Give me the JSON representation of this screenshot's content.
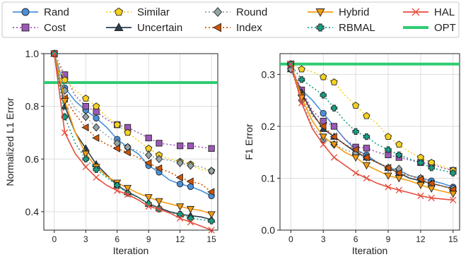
{
  "legend": [
    {
      "name": "Rand",
      "color": "#4a90d9",
      "marker": "circle",
      "dash": "solid"
    },
    {
      "name": "Cost",
      "color": "#9b59b6",
      "marker": "square",
      "dash": "dotted"
    },
    {
      "name": "Similar",
      "color": "#f5d020",
      "marker": "pentagon",
      "dash": "dotted"
    },
    {
      "name": "Uncertain",
      "color": "#2c3e50",
      "marker": "triangle-up",
      "dash": "solid"
    },
    {
      "name": "Round",
      "color": "#95a5a6",
      "marker": "diamond",
      "dash": "dotted"
    },
    {
      "name": "Index",
      "color": "#d35400",
      "marker": "triangle-left",
      "dash": "dotted"
    },
    {
      "name": "Hybrid",
      "color": "#f39c12",
      "marker": "triangle-down",
      "dash": "solid"
    },
    {
      "name": "RBMAL",
      "color": "#16a085",
      "marker": "plus",
      "dash": "dotted"
    },
    {
      "name": "HAL",
      "color": "#e74c3c",
      "marker": "x",
      "dash": "solid"
    },
    {
      "name": "OPT",
      "color": "#2ecc71",
      "marker": "none",
      "dash": "solid-thick"
    }
  ],
  "chart_data": [
    {
      "type": "line",
      "xlabel": "Iteration",
      "ylabel": "Normalized L1 Error",
      "xlim": [
        -1,
        15.6
      ],
      "ylim": [
        0.33,
        1.0
      ],
      "xticks": [
        "0",
        "3",
        "6",
        "9",
        "12",
        "15"
      ],
      "yticks": [
        "0.4",
        "0.6",
        "0.8",
        "1.0"
      ],
      "ytick_values": [
        0.4,
        0.6,
        0.8,
        1.0
      ],
      "xtick_values": [
        0,
        3,
        6,
        9,
        12,
        15
      ],
      "x": [
        0,
        1,
        2,
        3,
        4,
        5,
        6,
        7,
        8,
        9,
        10,
        11,
        12,
        13,
        14,
        15
      ],
      "marker_x": [
        0,
        1,
        3,
        4,
        6,
        7,
        9,
        10,
        12,
        13,
        15
      ],
      "opt": 0.89,
      "series": [
        {
          "name": "Rand",
          "values": [
            1.0,
            0.87,
            0.82,
            0.785,
            0.755,
            0.72,
            0.675,
            0.645,
            0.62,
            0.575,
            0.55,
            0.52,
            0.505,
            0.495,
            0.48,
            0.46
          ]
        },
        {
          "name": "Cost",
          "values": [
            1.0,
            0.92,
            0.84,
            0.8,
            0.78,
            0.75,
            0.73,
            0.72,
            0.7,
            0.68,
            0.66,
            0.655,
            0.65,
            0.65,
            0.645,
            0.64
          ]
        },
        {
          "name": "Similar",
          "values": [
            1.0,
            0.9,
            0.86,
            0.83,
            0.8,
            0.76,
            0.73,
            0.7,
            0.67,
            0.64,
            0.615,
            0.6,
            0.59,
            0.58,
            0.56,
            0.555
          ]
        },
        {
          "name": "Uncertain",
          "values": [
            1.0,
            0.8,
            0.7,
            0.64,
            0.58,
            0.54,
            0.5,
            0.475,
            0.455,
            0.43,
            0.415,
            0.4,
            0.39,
            0.385,
            0.38,
            0.37
          ]
        },
        {
          "name": "Round",
          "values": [
            1.0,
            0.86,
            0.79,
            0.76,
            0.72,
            0.69,
            0.66,
            0.645,
            0.63,
            0.615,
            0.6,
            0.595,
            0.585,
            0.575,
            0.57,
            0.555
          ]
        },
        {
          "name": "Index",
          "values": [
            1.0,
            0.83,
            0.77,
            0.72,
            0.68,
            0.655,
            0.64,
            0.625,
            0.605,
            0.585,
            0.565,
            0.55,
            0.53,
            0.515,
            0.505,
            0.475
          ]
        },
        {
          "name": "Hybrid",
          "values": [
            1.0,
            0.82,
            0.7,
            0.62,
            0.57,
            0.535,
            0.51,
            0.49,
            0.47,
            0.455,
            0.44,
            0.43,
            0.42,
            0.41,
            0.405,
            0.39
          ]
        },
        {
          "name": "RBMAL",
          "values": [
            1.0,
            0.76,
            0.66,
            0.6,
            0.56,
            0.53,
            0.5,
            0.47,
            0.455,
            0.43,
            0.41,
            0.395,
            0.39,
            0.375,
            0.37,
            0.365
          ]
        },
        {
          "name": "HAL",
          "values": [
            1.0,
            0.7,
            0.62,
            0.57,
            0.53,
            0.5,
            0.48,
            0.465,
            0.445,
            0.42,
            0.41,
            0.395,
            0.375,
            0.36,
            0.345,
            0.33
          ]
        }
      ]
    },
    {
      "type": "line",
      "xlabel": "Iteration",
      "ylabel": "F1 Error",
      "xlim": [
        -1,
        15.6
      ],
      "ylim": [
        0.0,
        0.34
      ],
      "xticks": [
        "0",
        "3",
        "6",
        "9",
        "12",
        "15"
      ],
      "yticks": [
        "0.0",
        "0.1",
        "0.2",
        "0.3"
      ],
      "ytick_values": [
        0.0,
        0.1,
        0.2,
        0.3
      ],
      "xtick_values": [
        0,
        3,
        6,
        9,
        12,
        15
      ],
      "x": [
        0,
        1,
        2,
        3,
        4,
        5,
        6,
        7,
        8,
        9,
        10,
        11,
        12,
        13,
        14,
        15
      ],
      "marker_x": [
        0,
        1,
        3,
        4,
        6,
        7,
        9,
        10,
        12,
        13,
        15
      ],
      "opt": 0.32,
      "series": [
        {
          "name": "Rand",
          "values": [
            0.31,
            0.27,
            0.25,
            0.225,
            0.2,
            0.175,
            0.155,
            0.145,
            0.13,
            0.12,
            0.115,
            0.105,
            0.1,
            0.095,
            0.09,
            0.083
          ]
        },
        {
          "name": "Cost",
          "values": [
            0.315,
            0.27,
            0.23,
            0.21,
            0.2,
            0.175,
            0.16,
            0.158,
            0.15,
            0.145,
            0.14,
            0.135,
            0.13,
            0.128,
            0.12,
            0.115
          ]
        },
        {
          "name": "Similar",
          "values": [
            0.32,
            0.31,
            0.305,
            0.295,
            0.285,
            0.26,
            0.24,
            0.22,
            0.205,
            0.18,
            0.165,
            0.15,
            0.14,
            0.13,
            0.123,
            0.115
          ]
        },
        {
          "name": "Uncertain",
          "values": [
            0.31,
            0.265,
            0.225,
            0.195,
            0.18,
            0.165,
            0.15,
            0.14,
            0.13,
            0.12,
            0.11,
            0.1,
            0.095,
            0.09,
            0.085,
            0.08
          ]
        },
        {
          "name": "Round",
          "values": [
            0.31,
            0.25,
            0.2,
            0.175,
            0.165,
            0.155,
            0.148,
            0.14,
            0.13,
            0.12,
            0.118,
            0.105,
            0.1,
            0.088,
            0.085,
            0.08
          ]
        },
        {
          "name": "Index",
          "values": [
            0.32,
            0.26,
            0.22,
            0.2,
            0.18,
            0.165,
            0.155,
            0.14,
            0.13,
            0.12,
            0.11,
            0.105,
            0.098,
            0.09,
            0.085,
            0.078
          ]
        },
        {
          "name": "Hybrid",
          "values": [
            0.32,
            0.255,
            0.21,
            0.18,
            0.165,
            0.15,
            0.14,
            0.125,
            0.115,
            0.105,
            0.1,
            0.095,
            0.087,
            0.08,
            0.075,
            0.07
          ]
        },
        {
          "name": "RBMAL",
          "values": [
            0.32,
            0.29,
            0.275,
            0.26,
            0.235,
            0.21,
            0.19,
            0.18,
            0.165,
            0.155,
            0.145,
            0.137,
            0.13,
            0.12,
            0.115,
            0.11
          ]
        },
        {
          "name": "HAL",
          "values": [
            0.32,
            0.245,
            0.195,
            0.165,
            0.14,
            0.125,
            0.11,
            0.1,
            0.09,
            0.083,
            0.077,
            0.072,
            0.066,
            0.062,
            0.06,
            0.058
          ]
        }
      ]
    }
  ]
}
